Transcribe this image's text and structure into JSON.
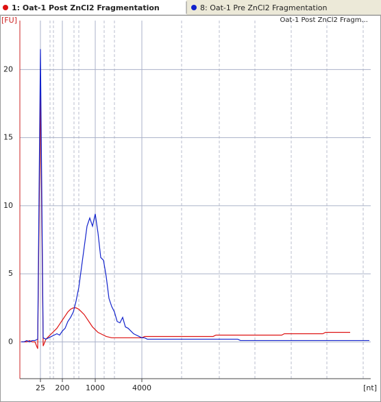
{
  "chart_data": {
    "type": "line",
    "title": "Oat-1 Post ZnCl2 Fragm...",
    "ylabel": "[FU]",
    "xlabel": "[nt]",
    "categories": [
      null,
      null,
      null,
      null,
      null,
      null,
      null,
      "25",
      null,
      null,
      null,
      null,
      null,
      null,
      null,
      "200",
      null,
      null,
      null,
      null,
      null,
      null,
      null,
      null,
      null,
      null,
      null,
      "1000",
      null,
      null,
      null,
      null,
      null,
      null,
      null,
      null,
      null,
      null,
      null,
      null,
      null,
      null,
      null,
      null,
      "4000",
      null,
      null,
      null,
      null,
      null,
      null,
      null,
      null,
      null,
      null,
      null,
      null,
      null,
      null,
      null,
      null,
      null,
      null,
      null,
      null,
      null,
      null,
      null,
      null,
      null,
      null,
      null,
      null,
      null,
      null,
      null,
      null,
      null,
      null,
      null,
      null,
      null,
      null,
      null,
      null,
      null,
      null,
      null,
      null,
      null,
      null,
      null,
      null,
      null,
      null,
      null,
      null,
      null,
      null,
      null,
      null,
      null,
      null,
      null,
      null,
      null,
      null,
      null,
      null,
      null,
      null,
      null,
      null,
      null,
      null,
      null,
      null,
      null,
      null,
      null,
      null,
      null,
      null,
      null,
      null,
      null,
      null,
      null
    ],
    "series": [
      {
        "name": "1: Oat-1 Post ZnCl2 Fragmentation",
        "color": "#dd1111",
        "values": [
          0,
          0,
          0,
          0.1,
          0,
          0,
          -0.5,
          18.5,
          -0.3,
          0.2,
          0.4,
          0.6,
          0.8,
          1.0,
          1.3,
          1.6,
          1.9,
          2.2,
          2.4,
          2.5,
          2.5,
          2.4,
          2.2,
          2.0,
          1.7,
          1.4,
          1.1,
          0.9,
          0.7,
          0.6,
          0.5,
          0.4,
          0.35,
          0.3,
          0.3,
          0.3,
          0.3,
          0.3,
          0.3,
          0.3,
          0.3,
          0.3,
          0.3,
          0.3,
          0.3,
          0.4,
          0.4,
          0.4,
          0.4,
          0.4,
          0.4,
          0.4,
          0.4,
          0.4,
          0.4,
          0.4,
          0.4,
          0.4,
          0.4,
          0.4,
          0.4,
          0.4,
          0.4,
          0.4,
          0.4,
          0.4,
          0.4,
          0.4,
          0.4,
          0.4,
          0.4,
          0.5,
          0.5,
          0.5,
          0.5,
          0.5,
          0.5,
          0.5,
          0.5,
          0.5,
          0.5,
          0.5,
          0.5,
          0.5,
          0.5,
          0.5,
          0.5,
          0.5,
          0.5,
          0.5,
          0.5,
          0.5,
          0.5,
          0.5,
          0.5,
          0.5,
          0.6,
          0.6,
          0.6,
          0.6,
          0.6,
          0.6,
          0.6,
          0.6,
          0.6,
          0.6,
          0.6,
          0.6,
          0.6,
          0.6,
          0.6,
          0.7,
          0.7,
          0.7,
          0.7,
          0.7,
          0.7,
          0.7,
          0.7,
          0.7,
          0.7,
          null,
          null,
          null,
          null,
          null,
          null,
          null
        ]
      },
      {
        "name": "8: Oat-1 Pre ZnCl2 Fragmentation",
        "color": "#1122cc",
        "values": [
          0,
          0,
          0.1,
          0,
          0.1,
          0.1,
          0.2,
          21.5,
          0.3,
          0.2,
          0.3,
          0.4,
          0.5,
          0.6,
          0.5,
          0.8,
          1.0,
          1.5,
          1.8,
          2.2,
          3.0,
          4.0,
          5.5,
          7.0,
          8.5,
          9.1,
          8.5,
          9.4,
          8.0,
          6.2,
          6.0,
          4.8,
          3.2,
          2.6,
          2.2,
          1.5,
          1.4,
          1.8,
          1.1,
          1.0,
          0.8,
          0.6,
          0.5,
          0.4,
          0.3,
          0.3,
          0.2,
          0.2,
          0.2,
          0.2,
          0.2,
          0.2,
          0.2,
          0.2,
          0.2,
          0.2,
          0.2,
          0.2,
          0.2,
          0.2,
          0.2,
          0.2,
          0.2,
          0.2,
          0.2,
          0.2,
          0.2,
          0.2,
          0.2,
          0.2,
          0.2,
          0.2,
          0.2,
          0.2,
          0.2,
          0.2,
          0.2,
          0.2,
          0.2,
          0.2,
          0.1,
          0.1,
          0.1,
          0.1,
          0.1,
          0.1,
          0.1,
          0.1,
          0.1,
          0.1,
          0.1,
          0.1,
          0.1,
          0.1,
          0.1,
          0.1,
          0.1,
          0.1,
          0.1,
          0.1,
          0.1,
          0.1,
          0.1,
          0.1,
          0.1,
          0.1,
          0.1,
          0.1,
          0.1,
          0.1,
          0.1,
          0.1,
          0.1,
          0.1,
          0.1,
          0.1,
          0.1,
          0.1,
          0.1,
          0.1,
          0.1,
          0.1,
          0.1,
          0.1,
          0.1,
          0.1,
          0.1,
          0.1
        ]
      }
    ],
    "ylim": [
      -2.7,
      24
    ],
    "yticks": [
      0,
      5,
      10,
      15,
      20
    ],
    "grid": true
  }
}
